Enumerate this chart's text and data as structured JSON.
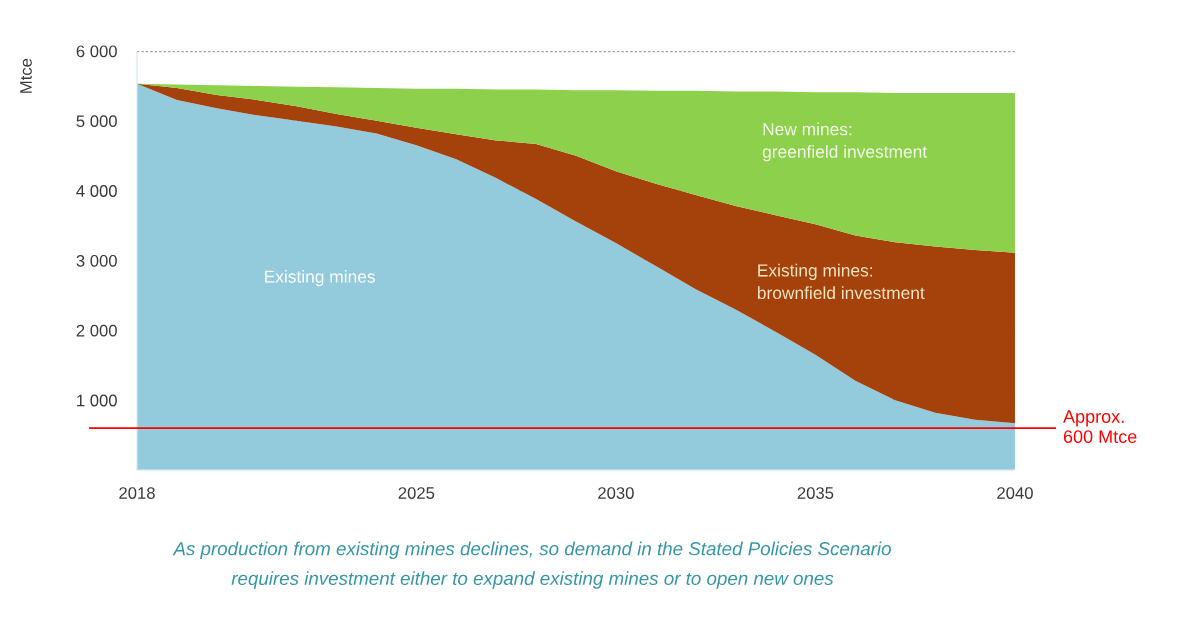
{
  "chart_data": {
    "type": "area",
    "stacked": true,
    "x": [
      2018,
      2019,
      2020,
      2021,
      2022,
      2023,
      2024,
      2025,
      2026,
      2027,
      2028,
      2029,
      2030,
      2031,
      2032,
      2033,
      2034,
      2035,
      2036,
      2037,
      2038,
      2039,
      2040
    ],
    "series": [
      {
        "name": "Existing mines",
        "color": "#93cbdc",
        "values": [
          5530,
          5300,
          5180,
          5080,
          5000,
          4920,
          4820,
          4650,
          4450,
          4180,
          3880,
          3560,
          3250,
          2920,
          2590,
          2300,
          1980,
          1650,
          1280,
          1000,
          820,
          720,
          670
        ]
      },
      {
        "name": "Existing mines:\nbrownfield investment",
        "color": "#a5420c",
        "values": [
          0,
          170,
          190,
          220,
          210,
          180,
          180,
          250,
          360,
          540,
          790,
          940,
          1030,
          1180,
          1350,
          1480,
          1670,
          1870,
          2080,
          2260,
          2380,
          2430,
          2440
        ]
      },
      {
        "name": "New mines:\ngreenfield investment",
        "color": "#8dd04b",
        "values": [
          0,
          50,
          140,
          200,
          280,
          380,
          470,
          560,
          650,
          730,
          780,
          940,
          1160,
          1330,
          1490,
          1640,
          1770,
          1890,
          2050,
          2140,
          2200,
          2250,
          2290
        ]
      }
    ],
    "ylabel": "Mtce",
    "xlim": [
      2018,
      2040
    ],
    "ylim": [
      0,
      6000
    ],
    "xticks": [
      2018,
      2025,
      2030,
      2035,
      2040
    ],
    "yticks": [
      {
        "value": 1000,
        "label": "1 000"
      },
      {
        "value": 2000,
        "label": "2 000"
      },
      {
        "value": 3000,
        "label": "3 000"
      },
      {
        "value": 4000,
        "label": "4 000"
      },
      {
        "value": 5000,
        "label": "5 000"
      },
      {
        "value": 6000,
        "label": "6 000"
      }
    ],
    "grid": "y",
    "ref_lines": [
      {
        "axis": "y",
        "value": 600,
        "label": "Approx.\n600 Mtce",
        "color": "#ff0000"
      }
    ],
    "annotations": [
      "As production from existing mines declines, so demand in the Stated Policies Scenario\nrequires investment either to expand existing mines or to open new ones"
    ]
  }
}
